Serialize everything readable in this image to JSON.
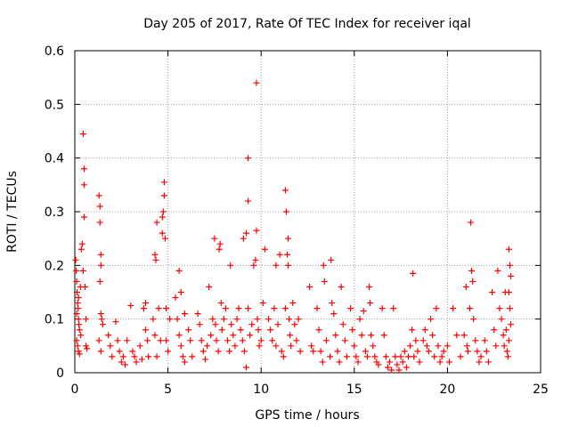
{
  "chart_data": {
    "type": "scatter",
    "title": "Day 205 of 2017, Rate Of TEC Index for receiver iqal",
    "xlabel": "GPS time / hours",
    "ylabel": "ROTI / TECUs",
    "xlim": [
      0,
      25
    ],
    "ylim": [
      0,
      0.6
    ],
    "xticks": [
      "0",
      "5",
      "10",
      "15",
      "20",
      "25"
    ],
    "yticks": [
      "0",
      "0.1",
      "0.2",
      "0.3",
      "0.4",
      "0.5",
      "0.6"
    ],
    "grid": true,
    "marker": "+",
    "marker_color": "#ff0000",
    "series": [
      {
        "name": "ROTI",
        "points": [
          [
            0.05,
            0.21
          ],
          [
            0.08,
            0.19
          ],
          [
            0.1,
            0.17
          ],
          [
            0.12,
            0.15
          ],
          [
            0.15,
            0.13
          ],
          [
            0.18,
            0.12
          ],
          [
            0.2,
            0.1
          ],
          [
            0.22,
            0.09
          ],
          [
            0.25,
            0.08
          ],
          [
            0.1,
            0.06
          ],
          [
            0.15,
            0.05
          ],
          [
            0.2,
            0.04
          ],
          [
            0.25,
            0.035
          ],
          [
            0.3,
            0.16
          ],
          [
            0.32,
            0.07
          ],
          [
            0.35,
            0.23
          ],
          [
            0.4,
            0.24
          ],
          [
            0.45,
            0.19
          ],
          [
            0.45,
            0.445
          ],
          [
            0.5,
            0.38
          ],
          [
            0.5,
            0.35
          ],
          [
            0.5,
            0.29
          ],
          [
            0.55,
            0.16
          ],
          [
            0.6,
            0.1
          ],
          [
            0.6,
            0.05
          ],
          [
            0.65,
            0.045
          ],
          [
            0.2,
            0.14
          ],
          [
            0.1,
            0.11
          ],
          [
            1.3,
            0.33
          ],
          [
            1.35,
            0.31
          ],
          [
            1.35,
            0.28
          ],
          [
            1.4,
            0.22
          ],
          [
            1.4,
            0.2
          ],
          [
            1.35,
            0.17
          ],
          [
            1.4,
            0.11
          ],
          [
            1.45,
            0.1
          ],
          [
            1.3,
            0.06
          ],
          [
            1.4,
            0.04
          ],
          [
            1.5,
            0.09
          ],
          [
            1.8,
            0.07
          ],
          [
            1.9,
            0.05
          ],
          [
            2.0,
            0.03
          ],
          [
            2.2,
            0.095
          ],
          [
            2.3,
            0.06
          ],
          [
            2.4,
            0.04
          ],
          [
            2.5,
            0.02
          ],
          [
            2.6,
            0.03
          ],
          [
            2.7,
            0.015
          ],
          [
            2.8,
            0.06
          ],
          [
            3.0,
            0.125
          ],
          [
            3.1,
            0.04
          ],
          [
            3.2,
            0.03
          ],
          [
            3.3,
            0.02
          ],
          [
            3.5,
            0.05
          ],
          [
            3.6,
            0.025
          ],
          [
            3.7,
            0.12
          ],
          [
            3.8,
            0.13
          ],
          [
            3.8,
            0.08
          ],
          [
            3.9,
            0.06
          ],
          [
            3.95,
            0.03
          ],
          [
            4.2,
            0.1
          ],
          [
            4.3,
            0.07
          ],
          [
            4.4,
            0.03
          ],
          [
            4.3,
            0.22
          ],
          [
            4.35,
            0.21
          ],
          [
            4.5,
            0.12
          ],
          [
            4.6,
            0.06
          ],
          [
            4.7,
            0.26
          ],
          [
            4.75,
            0.3
          ],
          [
            4.8,
            0.33
          ],
          [
            4.8,
            0.355
          ],
          [
            4.85,
            0.25
          ],
          [
            4.9,
            0.12
          ],
          [
            4.9,
            0.06
          ],
          [
            5.0,
            0.04
          ],
          [
            5.1,
            0.1
          ],
          [
            4.7,
            0.29
          ],
          [
            4.4,
            0.28
          ],
          [
            5.4,
            0.14
          ],
          [
            5.5,
            0.1
          ],
          [
            5.6,
            0.07
          ],
          [
            5.7,
            0.05
          ],
          [
            5.8,
            0.03
          ],
          [
            5.9,
            0.02
          ],
          [
            5.6,
            0.19
          ],
          [
            5.7,
            0.15
          ],
          [
            5.9,
            0.11
          ],
          [
            6.1,
            0.08
          ],
          [
            6.2,
            0.06
          ],
          [
            6.3,
            0.03
          ],
          [
            6.6,
            0.11
          ],
          [
            6.7,
            0.09
          ],
          [
            6.8,
            0.06
          ],
          [
            6.9,
            0.04
          ],
          [
            7.0,
            0.025
          ],
          [
            7.1,
            0.05
          ],
          [
            7.2,
            0.16
          ],
          [
            7.3,
            0.07
          ],
          [
            7.4,
            0.1
          ],
          [
            7.5,
            0.25
          ],
          [
            7.55,
            0.09
          ],
          [
            7.6,
            0.06
          ],
          [
            7.7,
            0.04
          ],
          [
            7.75,
            0.23
          ],
          [
            7.8,
            0.24
          ],
          [
            7.85,
            0.13
          ],
          [
            7.9,
            0.08
          ],
          [
            8.0,
            0.1
          ],
          [
            8.1,
            0.12
          ],
          [
            8.2,
            0.06
          ],
          [
            8.3,
            0.04
          ],
          [
            8.35,
            0.2
          ],
          [
            8.4,
            0.09
          ],
          [
            8.5,
            0.07
          ],
          [
            8.6,
            0.05
          ],
          [
            8.7,
            0.1
          ],
          [
            8.8,
            0.12
          ],
          [
            8.9,
            0.08
          ],
          [
            9.0,
            0.06
          ],
          [
            9.05,
            0.25
          ],
          [
            9.1,
            0.04
          ],
          [
            9.2,
            0.01
          ],
          [
            9.2,
            0.26
          ],
          [
            9.3,
            0.12
          ],
          [
            9.4,
            0.07
          ],
          [
            9.5,
            0.09
          ],
          [
            9.6,
            0.2
          ],
          [
            9.7,
            0.21
          ],
          [
            9.75,
            0.265
          ],
          [
            9.75,
            0.54
          ],
          [
            9.8,
            0.1
          ],
          [
            9.85,
            0.08
          ],
          [
            9.9,
            0.05
          ],
          [
            10.0,
            0.06
          ],
          [
            10.1,
            0.13
          ],
          [
            10.2,
            0.23
          ],
          [
            9.3,
            0.4
          ],
          [
            9.3,
            0.32
          ],
          [
            10.4,
            0.1
          ],
          [
            10.5,
            0.08
          ],
          [
            10.6,
            0.06
          ],
          [
            10.7,
            0.12
          ],
          [
            10.8,
            0.05
          ],
          [
            10.9,
            0.09
          ],
          [
            11.0,
            0.22
          ],
          [
            11.1,
            0.04
          ],
          [
            11.2,
            0.03
          ],
          [
            11.3,
            0.12
          ],
          [
            11.3,
            0.34
          ],
          [
            11.35,
            0.3
          ],
          [
            11.4,
            0.22
          ],
          [
            11.45,
            0.2
          ],
          [
            11.5,
            0.1
          ],
          [
            11.55,
            0.07
          ],
          [
            11.6,
            0.05
          ],
          [
            11.7,
            0.13
          ],
          [
            11.8,
            0.09
          ],
          [
            11.9,
            0.06
          ],
          [
            12.0,
            0.1
          ],
          [
            12.1,
            0.04
          ],
          [
            11.45,
            0.25
          ],
          [
            10.8,
            0.2
          ],
          [
            12.6,
            0.16
          ],
          [
            12.7,
            0.05
          ],
          [
            12.8,
            0.04
          ],
          [
            13.0,
            0.12
          ],
          [
            13.1,
            0.08
          ],
          [
            13.2,
            0.04
          ],
          [
            13.3,
            0.02
          ],
          [
            13.35,
            0.2
          ],
          [
            13.4,
            0.17
          ],
          [
            13.5,
            0.06
          ],
          [
            13.7,
            0.03
          ],
          [
            13.75,
            0.21
          ],
          [
            13.8,
            0.13
          ],
          [
            13.9,
            0.11
          ],
          [
            14.0,
            0.07
          ],
          [
            14.1,
            0.04
          ],
          [
            14.2,
            0.02
          ],
          [
            14.3,
            0.16
          ],
          [
            14.4,
            0.09
          ],
          [
            14.5,
            0.06
          ],
          [
            14.6,
            0.03
          ],
          [
            14.8,
            0.12
          ],
          [
            14.9,
            0.08
          ],
          [
            15.0,
            0.05
          ],
          [
            15.1,
            0.03
          ],
          [
            15.2,
            0.02
          ],
          [
            15.3,
            0.1
          ],
          [
            15.4,
            0.07
          ],
          [
            15.5,
            0.115
          ],
          [
            15.6,
            0.04
          ],
          [
            15.7,
            0.03
          ],
          [
            15.8,
            0.16
          ],
          [
            15.85,
            0.13
          ],
          [
            15.9,
            0.07
          ],
          [
            16.0,
            0.05
          ],
          [
            16.1,
            0.03
          ],
          [
            16.2,
            0.02
          ],
          [
            16.3,
            0.015
          ],
          [
            16.5,
            0.12
          ],
          [
            16.6,
            0.07
          ],
          [
            16.7,
            0.03
          ],
          [
            16.8,
            0.01
          ],
          [
            16.9,
            0.02
          ],
          [
            17.0,
            0.005
          ],
          [
            17.1,
            0.12
          ],
          [
            17.2,
            0.03
          ],
          [
            17.3,
            0.015
          ],
          [
            17.4,
            0.005
          ],
          [
            17.5,
            0.03
          ],
          [
            17.6,
            0.02
          ],
          [
            17.7,
            0.04
          ],
          [
            17.8,
            0.01
          ],
          [
            17.9,
            0.03
          ],
          [
            18.0,
            0.05
          ],
          [
            18.1,
            0.08
          ],
          [
            18.15,
            0.185
          ],
          [
            18.2,
            0.03
          ],
          [
            18.3,
            0.06
          ],
          [
            18.4,
            0.04
          ],
          [
            18.5,
            0.02
          ],
          [
            18.7,
            0.06
          ],
          [
            18.8,
            0.08
          ],
          [
            18.9,
            0.05
          ],
          [
            19.0,
            0.04
          ],
          [
            19.1,
            0.1
          ],
          [
            19.2,
            0.07
          ],
          [
            19.3,
            0.03
          ],
          [
            19.4,
            0.12
          ],
          [
            19.5,
            0.05
          ],
          [
            19.6,
            0.02
          ],
          [
            19.7,
            0.03
          ],
          [
            19.8,
            0.04
          ],
          [
            20.0,
            0.05
          ],
          [
            20.1,
            0.02
          ],
          [
            20.3,
            0.12
          ],
          [
            20.5,
            0.07
          ],
          [
            20.7,
            0.03
          ],
          [
            20.9,
            0.07
          ],
          [
            21.0,
            0.16
          ],
          [
            21.05,
            0.05
          ],
          [
            21.1,
            0.04
          ],
          [
            21.2,
            0.12
          ],
          [
            21.25,
            0.28
          ],
          [
            21.3,
            0.19
          ],
          [
            21.35,
            0.17
          ],
          [
            21.4,
            0.1
          ],
          [
            21.5,
            0.06
          ],
          [
            21.6,
            0.04
          ],
          [
            21.7,
            0.02
          ],
          [
            21.8,
            0.03
          ],
          [
            22.0,
            0.06
          ],
          [
            22.1,
            0.04
          ],
          [
            22.2,
            0.02
          ],
          [
            22.4,
            0.15
          ],
          [
            22.5,
            0.08
          ],
          [
            22.6,
            0.05
          ],
          [
            22.7,
            0.19
          ],
          [
            22.8,
            0.12
          ],
          [
            22.9,
            0.1
          ],
          [
            23.0,
            0.07
          ],
          [
            23.05,
            0.05
          ],
          [
            23.1,
            0.15
          ],
          [
            23.15,
            0.08
          ],
          [
            23.2,
            0.04
          ],
          [
            23.25,
            0.03
          ],
          [
            23.3,
            0.23
          ],
          [
            23.35,
            0.2
          ],
          [
            23.4,
            0.18
          ],
          [
            23.3,
            0.15
          ],
          [
            23.35,
            0.12
          ],
          [
            23.4,
            0.09
          ],
          [
            23.3,
            0.06
          ]
        ]
      }
    ]
  }
}
